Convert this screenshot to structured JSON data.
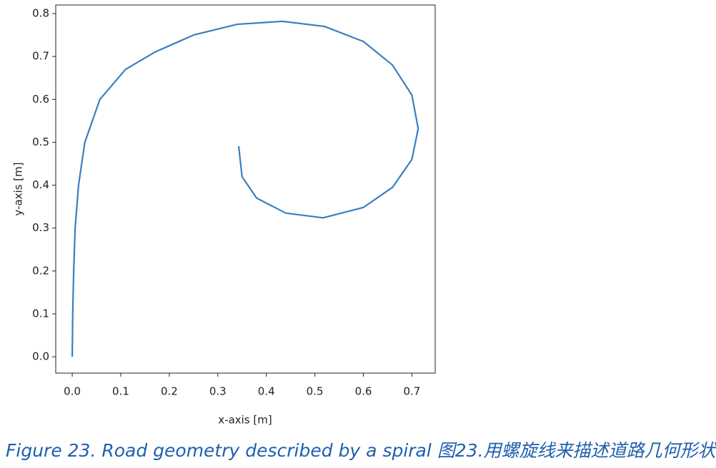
{
  "chart_data": {
    "type": "line",
    "x": [
      0,
      0.001,
      0.003,
      0.006,
      0.013,
      0.026,
      0.057,
      0.11,
      0.17,
      0.25,
      0.34,
      0.433,
      0.52,
      0.6,
      0.66,
      0.7,
      0.713,
      0.7,
      0.66,
      0.6,
      0.517,
      0.44,
      0.38,
      0.35,
      0.343
    ],
    "values": [
      0,
      0.1,
      0.2,
      0.3,
      0.4,
      0.5,
      0.6,
      0.67,
      0.71,
      0.75,
      0.775,
      0.782,
      0.77,
      0.735,
      0.68,
      0.61,
      0.532,
      0.46,
      0.395,
      0.348,
      0.324,
      0.335,
      0.37,
      0.42,
      0.491
    ],
    "color": "#3a7fc0",
    "xlabel": "x-axis [m]",
    "ylabel": "y-axis [m]",
    "xlim": [
      -0.034,
      0.748
    ],
    "ylim": [
      -0.038,
      0.82
    ],
    "xticks": [
      {
        "value": 0,
        "label": "0.0"
      },
      0.1,
      0.2,
      0.3,
      0.4,
      0.5,
      0.6,
      0.7
    ],
    "yticks": [
      {
        "value": 0,
        "label": "0.0"
      },
      0.1,
      0.2,
      0.3,
      0.4,
      0.5,
      0.6,
      0.7,
      0.8
    ],
    "caption": "Figure 23. Road geometry described by a spiral 图23.用螺旋线来描述道路几何形状"
  }
}
